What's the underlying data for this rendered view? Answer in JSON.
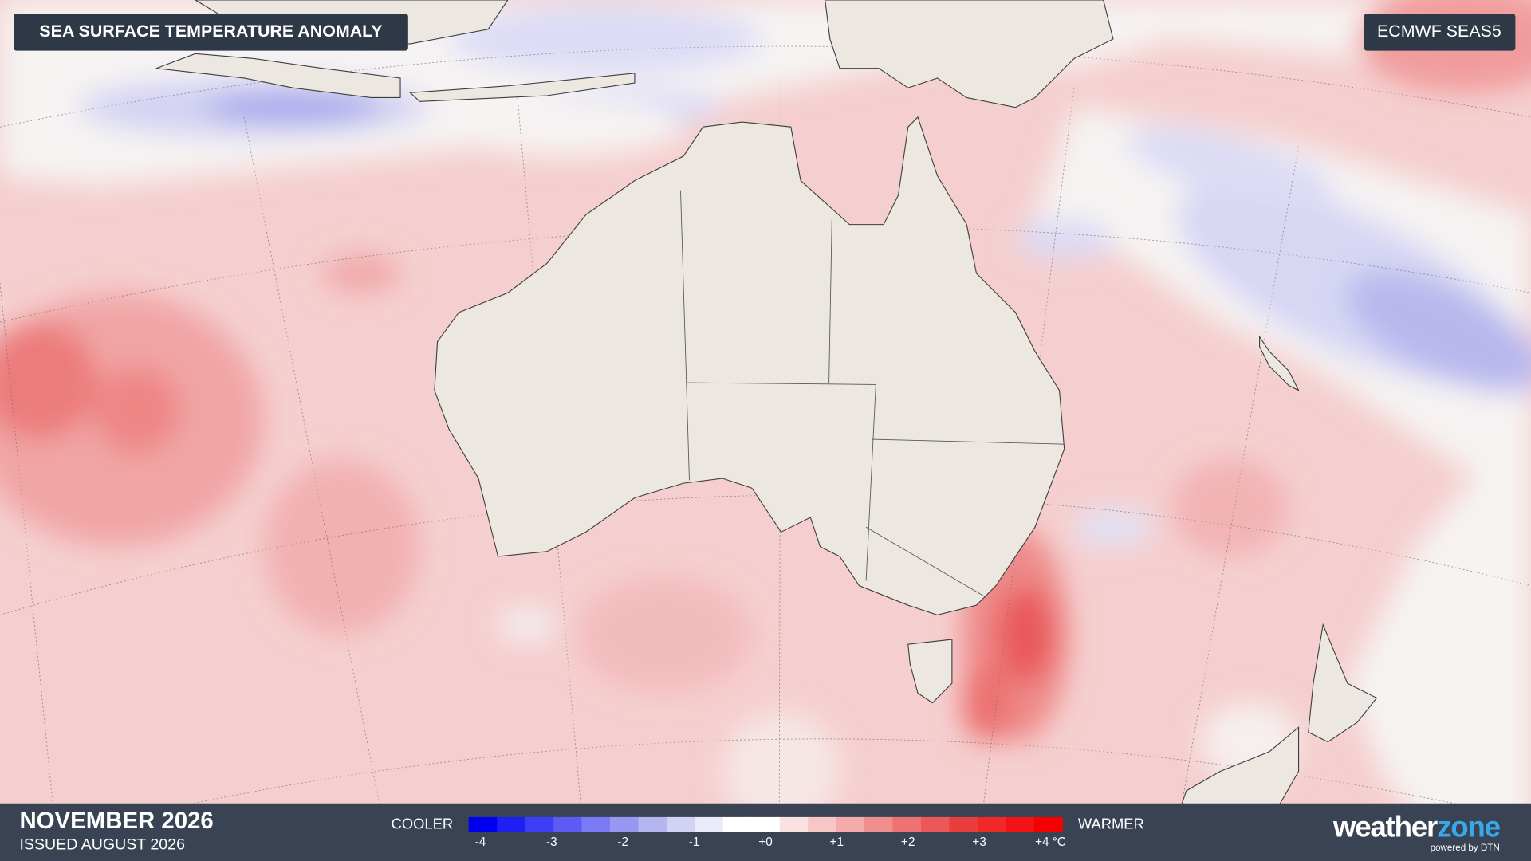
{
  "header": {
    "title": "SEA SURFACE TEMPERATURE ANOMALY",
    "model": "ECMWF SEAS5"
  },
  "footer": {
    "month": "NOVEMBER 2026",
    "issued": "ISSUED AUGUST 2026"
  },
  "legend": {
    "low_label": "COOLER",
    "high_label": "WARMER",
    "ticks": [
      "-4",
      "-3",
      "-2",
      "-1",
      "+0",
      "+1",
      "+2",
      "+3",
      "+4 °C"
    ],
    "colors": [
      "#0000f0",
      "#1f1ff2",
      "#3d3df5",
      "#5c5cf5",
      "#7a7af5",
      "#9898f2",
      "#b5b5ef",
      "#d2d2f5",
      "#eaeaf8",
      "#ffffff",
      "#ffffff",
      "#fbe2e2",
      "#f7c6c6",
      "#f4aaaa",
      "#f08d8d",
      "#ee7272",
      "#ec5858",
      "#ea3e3e",
      "#f02828",
      "#f21414",
      "#f50000"
    ]
  },
  "logo": {
    "word1": "weather",
    "word2": "zone",
    "tagline": "powered by DTN"
  }
}
